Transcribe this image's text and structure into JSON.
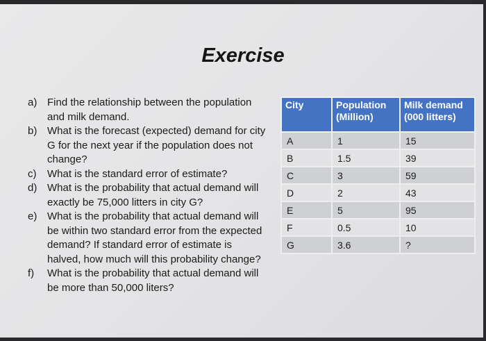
{
  "title": "Exercise",
  "questions": [
    {
      "label": "a)",
      "text": "Find the relationship between the population and milk demand."
    },
    {
      "label": "b)",
      "text": "What is the forecast (expected) demand for city G for the next year if the population does not change?"
    },
    {
      "label": "c)",
      "text": "What is the standard error of estimate?"
    },
    {
      "label": "d)",
      "text": "What is the probability that actual demand will exactly be 75,000 litters in city G?"
    },
    {
      "label": "e)",
      "text": "What is the probability that actual demand will be within two standard error from the expected demand? If standard error of estimate is halved, how much will this probability change?"
    },
    {
      "label": "f)",
      "text": "What is the probability that actual demand will be more than 50,000 liters?"
    }
  ],
  "table": {
    "headers": [
      "City",
      "Population (Million)",
      "Milk demand (000 litters)"
    ],
    "header_color": "#4473c4",
    "rows": [
      [
        "A",
        "1",
        "15"
      ],
      [
        "B",
        "1.5",
        "39"
      ],
      [
        "C",
        "3",
        "59"
      ],
      [
        "D",
        "2",
        "43"
      ],
      [
        "E",
        "5",
        "95"
      ],
      [
        "F",
        "0.5",
        "10"
      ],
      [
        "G",
        "3.6",
        "?"
      ]
    ]
  }
}
